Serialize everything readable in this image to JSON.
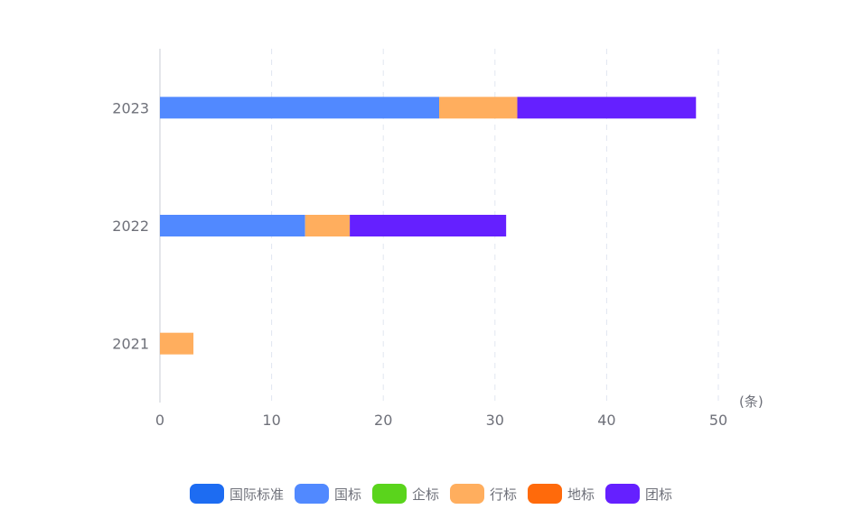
{
  "chart_data": {
    "type": "bar",
    "orientation": "horizontal",
    "stacked": true,
    "categories": [
      "2021",
      "2022",
      "2023"
    ],
    "series": [
      {
        "name": "国际标准",
        "color": "#1d6cf2",
        "values": [
          0,
          0,
          0
        ]
      },
      {
        "name": "国标",
        "color": "#5189ff",
        "values": [
          0,
          13,
          25
        ]
      },
      {
        "name": "企标",
        "color": "#5ad41c",
        "values": [
          0,
          0,
          0
        ]
      },
      {
        "name": "行标",
        "color": "#ffae5e",
        "values": [
          3,
          4,
          7
        ]
      },
      {
        "name": "地标",
        "color": "#ff6a0b",
        "values": [
          0,
          0,
          0
        ]
      },
      {
        "name": "团标",
        "color": "#6520ff",
        "values": [
          0,
          14,
          16
        ]
      }
    ],
    "xlim": [
      0,
      50
    ],
    "xticks": [
      "0",
      "10",
      "20",
      "30",
      "40",
      "50"
    ],
    "xunit": "(条)",
    "grid": true,
    "legend_position": "bottom"
  }
}
